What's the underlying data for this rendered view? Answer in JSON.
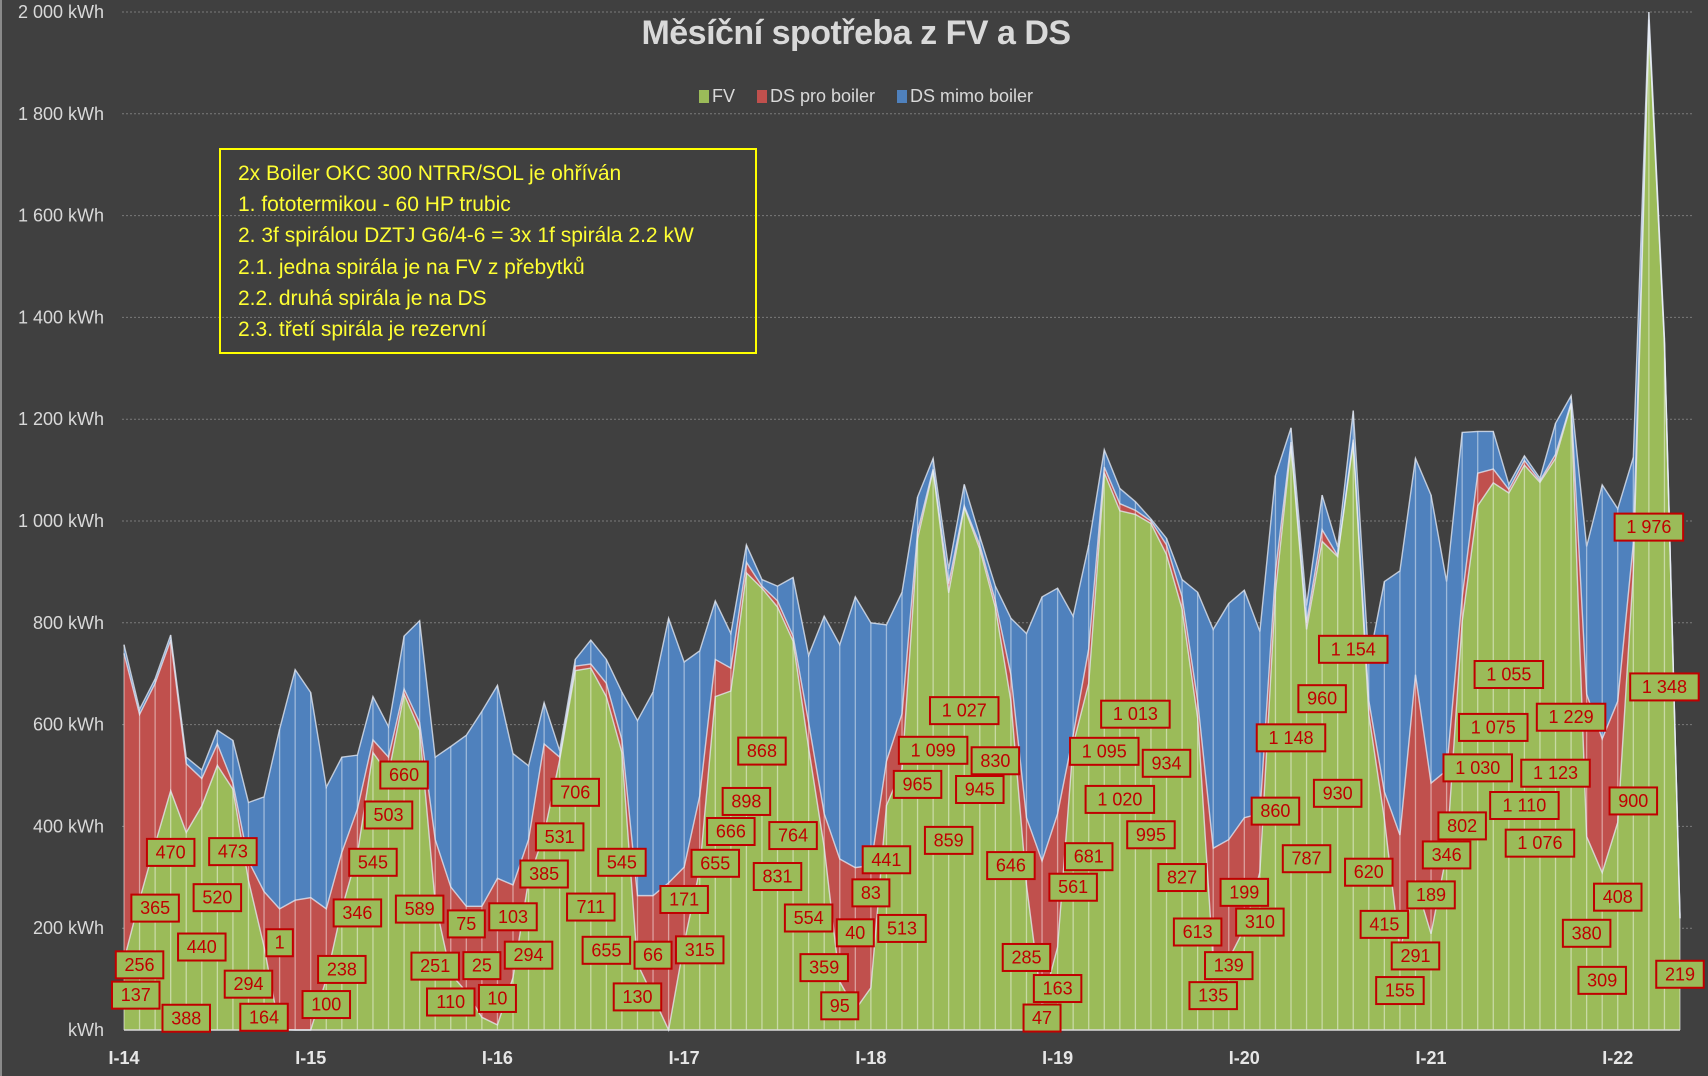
{
  "chart_data": {
    "type": "area",
    "stacked": true,
    "title": "Měsíční spotřeba z FV a DS",
    "xlabel": "",
    "ylabel": "",
    "ylim": [
      0,
      2000
    ],
    "y_ticks": [
      {
        "value": 0,
        "label": "kWh"
      },
      {
        "value": 200,
        "label": "200 kWh"
      },
      {
        "value": 400,
        "label": "400 kWh"
      },
      {
        "value": 600,
        "label": "600 kWh"
      },
      {
        "value": 800,
        "label": "800 kWh"
      },
      {
        "value": 1000,
        "label": "1 000 kWh"
      },
      {
        "value": 1200,
        "label": "1 200 kWh"
      },
      {
        "value": 1400,
        "label": "1 400 kWh"
      },
      {
        "value": 1600,
        "label": "1 600 kWh"
      },
      {
        "value": 1800,
        "label": "1 800 kWh"
      },
      {
        "value": 2000,
        "label": "2 000 kWh"
      }
    ],
    "x_ticks": [
      {
        "month_index": 0,
        "label": "I-14"
      },
      {
        "month_index": 12,
        "label": "I-15"
      },
      {
        "month_index": 24,
        "label": "I-16"
      },
      {
        "month_index": 36,
        "label": "I-17"
      },
      {
        "month_index": 48,
        "label": "I-18"
      },
      {
        "month_index": 60,
        "label": "I-19"
      },
      {
        "month_index": 72,
        "label": "I-20"
      },
      {
        "month_index": 84,
        "label": "I-21"
      },
      {
        "month_index": 96,
        "label": "I-22"
      }
    ],
    "x_start": "2014-01",
    "month_count": 101,
    "grid": true,
    "legend_position": "top-center",
    "data_labels": "FV values, centered in FV area",
    "series": [
      {
        "name": "FV",
        "color": "#9bbb59",
        "values": [
          137,
          256,
          365,
          470,
          388,
          440,
          520,
          473,
          294,
          164,
          1,
          0,
          0,
          100,
          238,
          346,
          545,
          503,
          660,
          589,
          251,
          110,
          75,
          25,
          10,
          103,
          294,
          385,
          531,
          706,
          711,
          655,
          545,
          130,
          66,
          0,
          171,
          315,
          655,
          666,
          898,
          868,
          831,
          764,
          554,
          359,
          95,
          40,
          83,
          441,
          513,
          965,
          1099,
          859,
          1027,
          945,
          830,
          646,
          285,
          47,
          163,
          561,
          681,
          1095,
          1020,
          1013,
          995,
          934,
          827,
          613,
          135,
          139,
          199,
          310,
          860,
          1148,
          787,
          960,
          930,
          1154,
          620,
          415,
          155,
          291,
          189,
          346,
          802,
          1030,
          1075,
          1055,
          1110,
          1076,
          1123,
          1229,
          380,
          309,
          408,
          900,
          1976,
          1348,
          219
        ]
      },
      {
        "name": "DS pro boiler",
        "color": "#c0504d",
        "values": [
          603,
          364,
          316,
          296,
          135,
          54,
          42,
          12,
          38,
          108,
          237,
          255,
          260,
          138,
          111,
          88,
          25,
          33,
          10,
          15,
          123,
          171,
          168,
          218,
          288,
          182,
          80,
          177,
          5,
          9,
          8,
          26,
          25,
          134,
          198,
          289,
          149,
          145,
          73,
          45,
          21,
          4,
          12,
          10,
          50,
          66,
          241,
          279,
          240,
          87,
          108,
          14,
          3,
          18,
          3,
          8,
          13,
          52,
          132,
          285,
          262,
          18,
          68,
          11,
          14,
          8,
          5,
          19,
          24,
          34,
          222,
          235,
          218,
          115,
          40,
          7,
          13,
          23,
          2,
          6,
          27,
          53,
          228,
          407,
          296,
          164,
          48,
          64,
          27,
          7,
          9,
          3,
          8,
          3,
          280,
          263,
          238,
          56,
          9,
          2,
          1
        ]
      },
      {
        "name": "DS mimo boiler",
        "color": "#4f81bd",
        "values": [
          17,
          10,
          9,
          10,
          13,
          17,
          27,
          84,
          115,
          186,
          353,
          453,
          403,
          239,
          187,
          106,
          85,
          60,
          104,
          200,
          162,
          276,
          336,
          383,
          379,
          258,
          145,
          81,
          13,
          13,
          47,
          47,
          94,
          344,
          400,
          520,
          403,
          285,
          115,
          68,
          34,
          13,
          29,
          115,
          132,
          388,
          421,
          532,
          477,
          268,
          239,
          68,
          21,
          29,
          42,
          17,
          29,
          111,
          362,
          519,
          443,
          234,
          204,
          34,
          30,
          17,
          4,
          13,
          34,
          213,
          430,
          464,
          447,
          358,
          189,
          28,
          34,
          68,
          17,
          57,
          76,
          413,
          519,
          425,
          566,
          371,
          324,
          82,
          74,
          10,
          9,
          5,
          61,
          14,
          290,
          499,
          378,
          169,
          15,
          10,
          5
        ]
      }
    ]
  },
  "note": {
    "lines": [
      "2x Boiler OKC 300 NTRR/SOL je ohříván",
      "1. fototermikou - 60 HP trubic",
      "2. 3f spirálou DZTJ G6/4-6 = 3x 1f spirála 2.2 kW",
      "2.1. jedna spirála je na FV z přebytků",
      "2.2. druhá spirála je na DS",
      "2.3. třetí spirála je rezervní"
    ]
  },
  "colors": {
    "background": "#404040",
    "label_border": "#c00000",
    "note_border": "#ffff00",
    "note_text": "#ffff33"
  }
}
